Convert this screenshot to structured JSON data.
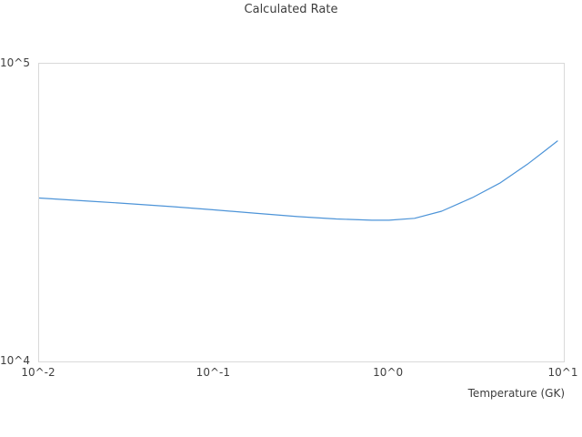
{
  "colors": {
    "line": "#4d94d8",
    "plot_border": "#d9d9d9",
    "text": "#3d3d3d",
    "background": "#ffffff"
  },
  "chart_data": {
    "type": "line",
    "title": "Calculated Rate",
    "xlabel": "Temperature (GK)",
    "ylabel": "",
    "x_scale": "log",
    "y_scale": "log",
    "xlim": [
      0.01,
      10
    ],
    "ylim": [
      10000,
      100000
    ],
    "grid": false,
    "legend_position": "none",
    "x_ticks": [
      {
        "value": 0.01,
        "label": "10^-2"
      },
      {
        "value": 0.1,
        "label": "10^-1"
      },
      {
        "value": 1,
        "label": "10^0"
      },
      {
        "value": 10,
        "label": "10^1"
      }
    ],
    "y_ticks": [
      {
        "value": 10000,
        "label": "10^4"
      },
      {
        "value": 100000,
        "label": "10^5"
      }
    ],
    "series": [
      {
        "name": "calculated-rate",
        "color": "#4d94d8",
        "x": [
          0.01,
          0.02,
          0.032,
          0.058,
          0.1,
          0.17,
          0.3,
          0.5,
          0.8,
          1.0,
          1.4,
          2.0,
          3.0,
          4.3,
          6.2,
          7.8,
          9.2
        ],
        "y": [
          35400,
          34500,
          33900,
          33100,
          32300,
          31500,
          30650,
          30100,
          29800,
          29800,
          30250,
          31950,
          35500,
          39700,
          46000,
          51000,
          55000
        ]
      }
    ]
  }
}
